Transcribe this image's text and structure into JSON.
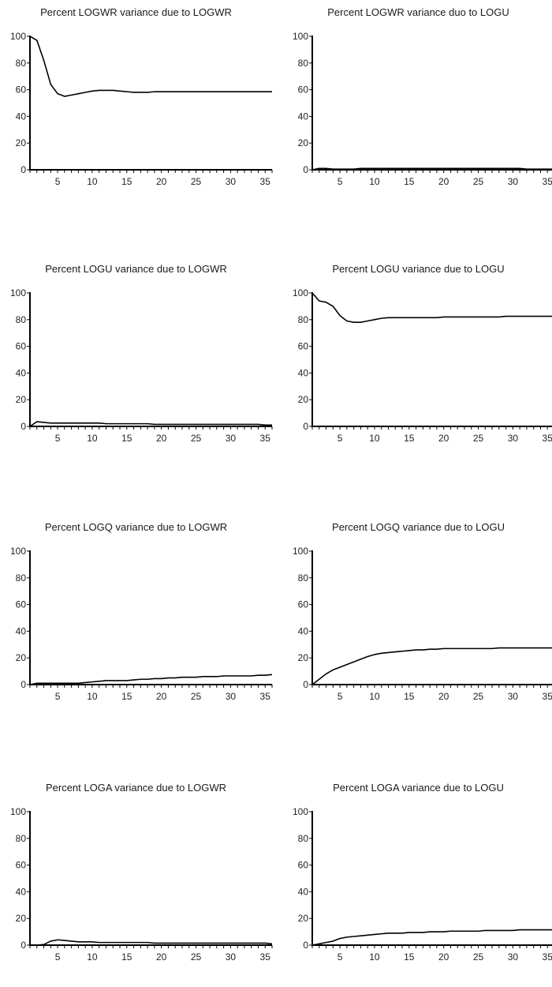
{
  "chart_data": [
    {
      "type": "line",
      "title": "Percent LOGWR variance due to LOGWR",
      "xlim": [
        1,
        36
      ],
      "ylim": [
        0,
        100
      ],
      "x_ticks": [
        5,
        10,
        15,
        20,
        25,
        30,
        35
      ],
      "y_ticks": [
        0,
        20,
        40,
        60,
        80,
        100
      ],
      "x": [
        1,
        2,
        3,
        4,
        5,
        6,
        7,
        8,
        9,
        10,
        11,
        12,
        13,
        14,
        15,
        16,
        17,
        18,
        19,
        20,
        21,
        22,
        23,
        24,
        25,
        26,
        27,
        28,
        29,
        30,
        31,
        32,
        33,
        34,
        35,
        36
      ],
      "series": [
        {
          "values": [
            100,
            97,
            82,
            64,
            57,
            55,
            56,
            57,
            58,
            59,
            59.5,
            59.5,
            59.5,
            59,
            58.5,
            58,
            58,
            58,
            58.5,
            58.5,
            58.5,
            58.5,
            58.5,
            58.5,
            58.5,
            58.5,
            58.5,
            58.5,
            58.5,
            58.5,
            58.5,
            58.5,
            58.5,
            58.5,
            58.5,
            58.5
          ]
        }
      ]
    },
    {
      "type": "line",
      "title": "Percent LOGWR variance duo to LOGU",
      "xlim": [
        1,
        36
      ],
      "ylim": [
        0,
        100
      ],
      "x_ticks": [
        5,
        10,
        15,
        20,
        25,
        30,
        35
      ],
      "y_ticks": [
        0,
        20,
        40,
        60,
        80,
        100
      ],
      "x": [
        1,
        2,
        3,
        4,
        5,
        6,
        7,
        8,
        9,
        10,
        11,
        12,
        13,
        14,
        15,
        16,
        17,
        18,
        19,
        20,
        21,
        22,
        23,
        24,
        25,
        26,
        27,
        28,
        29,
        30,
        31,
        32,
        33,
        34,
        35,
        36
      ],
      "series": [
        {
          "values": [
            0,
            1,
            1,
            0.5,
            0.5,
            0.5,
            0.5,
            1,
            1,
            1,
            1,
            1,
            1,
            1,
            1,
            1,
            1,
            1,
            1,
            1,
            1,
            1,
            1,
            1,
            1,
            1,
            1,
            1,
            1,
            1,
            1,
            0.5,
            0.5,
            0.5,
            0.5,
            0.5
          ]
        }
      ]
    },
    {
      "type": "line",
      "title": "Percent LOGU variance due to LOGWR",
      "xlim": [
        1,
        36
      ],
      "ylim": [
        0,
        100
      ],
      "x_ticks": [
        5,
        10,
        15,
        20,
        25,
        30,
        35
      ],
      "y_ticks": [
        0,
        20,
        40,
        60,
        80,
        100
      ],
      "x": [
        1,
        2,
        3,
        4,
        5,
        6,
        7,
        8,
        9,
        10,
        11,
        12,
        13,
        14,
        15,
        16,
        17,
        18,
        19,
        20,
        21,
        22,
        23,
        24,
        25,
        26,
        27,
        28,
        29,
        30,
        31,
        32,
        33,
        34,
        35,
        36
      ],
      "series": [
        {
          "values": [
            0,
            3.5,
            3,
            2.5,
            2.5,
            2.5,
            2.5,
            2.5,
            2.5,
            2.5,
            2.5,
            2,
            2,
            2,
            2,
            2,
            2,
            2,
            1.5,
            1.5,
            1.5,
            1.5,
            1.5,
            1.5,
            1.5,
            1.5,
            1.5,
            1.5,
            1.5,
            1.5,
            1.5,
            1.5,
            1.5,
            1.5,
            1,
            1
          ]
        }
      ]
    },
    {
      "type": "line",
      "title": "Percent LOGU variance due to LOGU",
      "xlim": [
        1,
        36
      ],
      "ylim": [
        0,
        100
      ],
      "x_ticks": [
        5,
        10,
        15,
        20,
        25,
        30,
        35
      ],
      "y_ticks": [
        0,
        20,
        40,
        60,
        80,
        100
      ],
      "x": [
        1,
        2,
        3,
        4,
        5,
        6,
        7,
        8,
        9,
        10,
        11,
        12,
        13,
        14,
        15,
        16,
        17,
        18,
        19,
        20,
        21,
        22,
        23,
        24,
        25,
        26,
        27,
        28,
        29,
        30,
        31,
        32,
        33,
        34,
        35,
        36
      ],
      "series": [
        {
          "values": [
            100,
            94,
            93,
            90,
            83,
            79,
            78,
            78,
            79,
            80,
            81,
            81.5,
            81.5,
            81.5,
            81.5,
            81.5,
            81.5,
            81.5,
            81.5,
            82,
            82,
            82,
            82,
            82,
            82,
            82,
            82,
            82,
            82.5,
            82.5,
            82.5,
            82.5,
            82.5,
            82.5,
            82.5,
            82.5
          ]
        }
      ]
    },
    {
      "type": "line",
      "title": "Percent LOGQ variance due to LOGWR",
      "xlim": [
        1,
        36
      ],
      "ylim": [
        0,
        100
      ],
      "x_ticks": [
        5,
        10,
        15,
        20,
        25,
        30,
        35
      ],
      "y_ticks": [
        0,
        20,
        40,
        60,
        80,
        100
      ],
      "x": [
        1,
        2,
        3,
        4,
        5,
        6,
        7,
        8,
        9,
        10,
        11,
        12,
        13,
        14,
        15,
        16,
        17,
        18,
        19,
        20,
        21,
        22,
        23,
        24,
        25,
        26,
        27,
        28,
        29,
        30,
        31,
        32,
        33,
        34,
        35,
        36
      ],
      "series": [
        {
          "values": [
            0,
            1,
            1,
            1,
            1,
            1,
            1,
            1,
            1.5,
            2,
            2.5,
            3,
            3,
            3,
            3,
            3.5,
            4,
            4,
            4.5,
            4.5,
            5,
            5,
            5.5,
            5.5,
            5.5,
            6,
            6,
            6,
            6.5,
            6.5,
            6.5,
            6.5,
            6.5,
            7,
            7,
            7.5
          ]
        }
      ]
    },
    {
      "type": "line",
      "title": "Percent LOGQ variance due to LOGU",
      "xlim": [
        1,
        36
      ],
      "ylim": [
        0,
        100
      ],
      "x_ticks": [
        5,
        10,
        15,
        20,
        25,
        30,
        35
      ],
      "y_ticks": [
        0,
        20,
        40,
        60,
        80,
        100
      ],
      "x": [
        1,
        2,
        3,
        4,
        5,
        6,
        7,
        8,
        9,
        10,
        11,
        12,
        13,
        14,
        15,
        16,
        17,
        18,
        19,
        20,
        21,
        22,
        23,
        24,
        25,
        26,
        27,
        28,
        29,
        30,
        31,
        32,
        33,
        34,
        35,
        36
      ],
      "series": [
        {
          "values": [
            0,
            4,
            8,
            11,
            13,
            15,
            17,
            19,
            21,
            22.5,
            23.5,
            24,
            24.5,
            25,
            25.5,
            26,
            26,
            26.5,
            26.5,
            27,
            27,
            27,
            27,
            27,
            27,
            27,
            27,
            27.5,
            27.5,
            27.5,
            27.5,
            27.5,
            27.5,
            27.5,
            27.5,
            27.5
          ]
        }
      ]
    },
    {
      "type": "line",
      "title": "Percent LOGA variance due to LOGWR",
      "xlim": [
        1,
        36
      ],
      "ylim": [
        0,
        100
      ],
      "x_ticks": [
        5,
        10,
        15,
        20,
        25,
        30,
        35
      ],
      "y_ticks": [
        0,
        20,
        40,
        60,
        80,
        100
      ],
      "x": [
        1,
        2,
        3,
        4,
        5,
        6,
        7,
        8,
        9,
        10,
        11,
        12,
        13,
        14,
        15,
        16,
        17,
        18,
        19,
        20,
        21,
        22,
        23,
        24,
        25,
        26,
        27,
        28,
        29,
        30,
        31,
        32,
        33,
        34,
        35,
        36
      ],
      "series": [
        {
          "values": [
            0,
            0,
            0.5,
            3,
            4,
            3.5,
            3,
            2.5,
            2.5,
            2.5,
            2,
            2,
            2,
            2,
            2,
            2,
            2,
            2,
            1.5,
            1.5,
            1.5,
            1.5,
            1.5,
            1.5,
            1.5,
            1.5,
            1.5,
            1.5,
            1.5,
            1.5,
            1.5,
            1.5,
            1.5,
            1.5,
            1.5,
            1
          ]
        }
      ]
    },
    {
      "type": "line",
      "title": "Percent LOGA variance due to LOGU",
      "xlim": [
        1,
        36
      ],
      "ylim": [
        0,
        100
      ],
      "x_ticks": [
        5,
        10,
        15,
        20,
        25,
        30,
        35
      ],
      "y_ticks": [
        0,
        20,
        40,
        60,
        80,
        100
      ],
      "x": [
        1,
        2,
        3,
        4,
        5,
        6,
        7,
        8,
        9,
        10,
        11,
        12,
        13,
        14,
        15,
        16,
        17,
        18,
        19,
        20,
        21,
        22,
        23,
        24,
        25,
        26,
        27,
        28,
        29,
        30,
        31,
        32,
        33,
        34,
        35,
        36
      ],
      "series": [
        {
          "values": [
            0,
            1,
            2,
            3,
            5,
            6,
            6.5,
            7,
            7.5,
            8,
            8.5,
            9,
            9,
            9,
            9.5,
            9.5,
            9.5,
            10,
            10,
            10,
            10.5,
            10.5,
            10.5,
            10.5,
            10.5,
            11,
            11,
            11,
            11,
            11,
            11.5,
            11.5,
            11.5,
            11.5,
            11.5,
            11.5
          ]
        }
      ]
    }
  ]
}
